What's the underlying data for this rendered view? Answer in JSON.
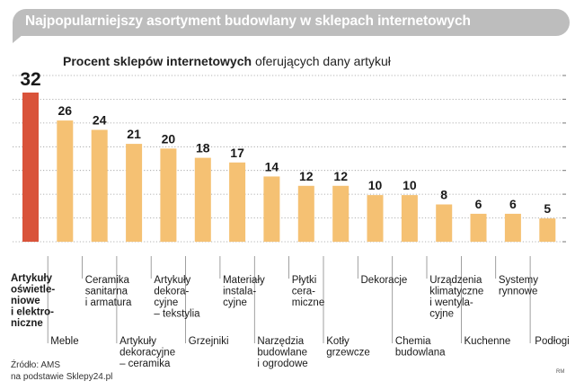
{
  "title": "Najpopularniejszy asortyment budowlany w sklepach internetowych",
  "subtitle_bold": "Procent sklepów internetowych",
  "subtitle_rest": "oferujących dany artykuł",
  "source_line1": "Źródło: AMS",
  "source_line2": "na podstawie Sklepy24.pl",
  "credit": "RM",
  "colors": {
    "highlight": "#d9533a",
    "bar": "#f5c173",
    "grid": "#9a9a9a",
    "banner": "#bdbdbd"
  },
  "chart_data": {
    "type": "bar",
    "ylim": [
      0,
      32
    ],
    "grid": true,
    "categories": [
      "Artykuły oświetleniowe i elektroniczne",
      "Meble",
      "Ceramika sanitarna i armatura",
      "Artykuły dekoracyjne – ceramika",
      "Artykuły dekoracyjne – tekstylia",
      "Grzejniki",
      "Materiały instalacyjne",
      "Narzędzia budowlane i ogrodowe",
      "Płytki ceramiczne",
      "Kotły grzewcze",
      "Dekoracje",
      "Chemia budowlana",
      "Urządzenia klimatyczne i wentylacyjne",
      "Kuchenne",
      "Systemy rynnowe",
      "Podłogi"
    ],
    "labels": [
      [
        "Artykuły",
        "oświetle-",
        "niowe",
        "i elektro-",
        "niczne"
      ],
      [
        "Meble"
      ],
      [
        "Ceramika",
        "sanitarna",
        "i armatura"
      ],
      [
        "Artykuły",
        "dekoracyjne",
        "– ceramika"
      ],
      [
        "Artykuły",
        "dekora-",
        "cyjne",
        "– tekstylia"
      ],
      [
        "Grzejniki"
      ],
      [
        "Materiały",
        "instala-",
        "cyjne"
      ],
      [
        "Narzędzia",
        "budowlane",
        "i ogrodowe"
      ],
      [
        "Płytki",
        "cera-",
        "miczne"
      ],
      [
        "Kotły",
        "grzewcze"
      ],
      [
        "Dekoracje"
      ],
      [
        "Chemia",
        "budowlana"
      ],
      [
        "Urządzenia",
        "klimatyczne",
        "i wentyla-",
        "cyjne"
      ],
      [
        "Kuchenne"
      ],
      [
        "Systemy",
        "rynnowe"
      ],
      [
        "Podłogi"
      ]
    ],
    "values": [
      32,
      26,
      24,
      21,
      20,
      18,
      17,
      14,
      12,
      12,
      10,
      10,
      8,
      6,
      6,
      5
    ],
    "highlight_index": 0
  }
}
